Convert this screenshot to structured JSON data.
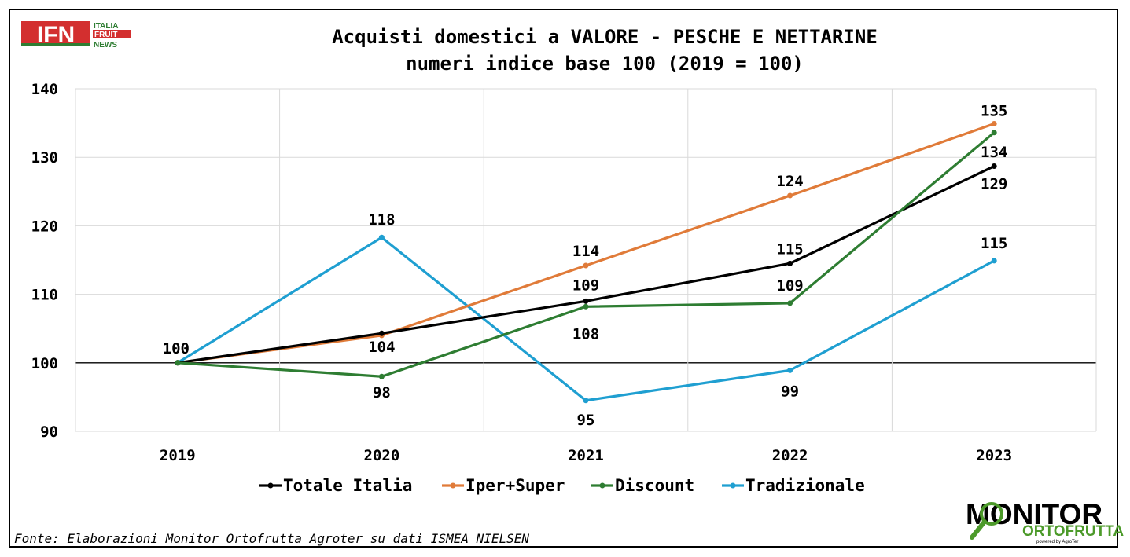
{
  "chart_data": {
    "type": "line",
    "title": "Acquisti domestici a VALORE - PESCHE E NETTARINE",
    "subtitle": "numeri indice base 100 (2019 = 100)",
    "categories": [
      "2019",
      "2020",
      "2021",
      "2022",
      "2023"
    ],
    "ylim": [
      90,
      140
    ],
    "yticks": [
      90,
      100,
      110,
      120,
      130,
      140
    ],
    "grid": true,
    "legend_position": "bottom",
    "series": [
      {
        "name": "Totale Italia",
        "color": "#000000",
        "values": [
          100,
          104.3,
          109,
          114.5,
          128.7
        ],
        "labels": [
          "100",
          "",
          "109",
          "115",
          "129"
        ]
      },
      {
        "name": "Iper+Super",
        "color": "#e07b39",
        "values": [
          100,
          104,
          114.2,
          124.4,
          134.9
        ],
        "labels": [
          "",
          "104",
          "114",
          "124",
          "135"
        ]
      },
      {
        "name": "Discount",
        "color": "#2e7d32",
        "values": [
          100,
          98,
          108.2,
          108.7,
          133.6
        ],
        "labels": [
          "",
          "98",
          "108",
          "109",
          "134"
        ]
      },
      {
        "name": "Tradizionale",
        "color": "#1f9fd1",
        "values": [
          100,
          118.3,
          94.5,
          98.9,
          114.9
        ],
        "labels": [
          "",
          "118",
          "95",
          "99",
          "115"
        ]
      }
    ]
  },
  "source": "Fonte: Elaborazioni Monitor Ortofrutta Agroter su dati ISMEA NIELSEN",
  "logo_ifn": {
    "big": "IFN",
    "line1": "ITALIA",
    "line2": "FRUIT",
    "line3": "NEWS"
  },
  "logo_monitor": {
    "big": "MONITOR",
    "sub": "ORTOFRUTTA",
    "tiny": "powered by AgroTer"
  }
}
